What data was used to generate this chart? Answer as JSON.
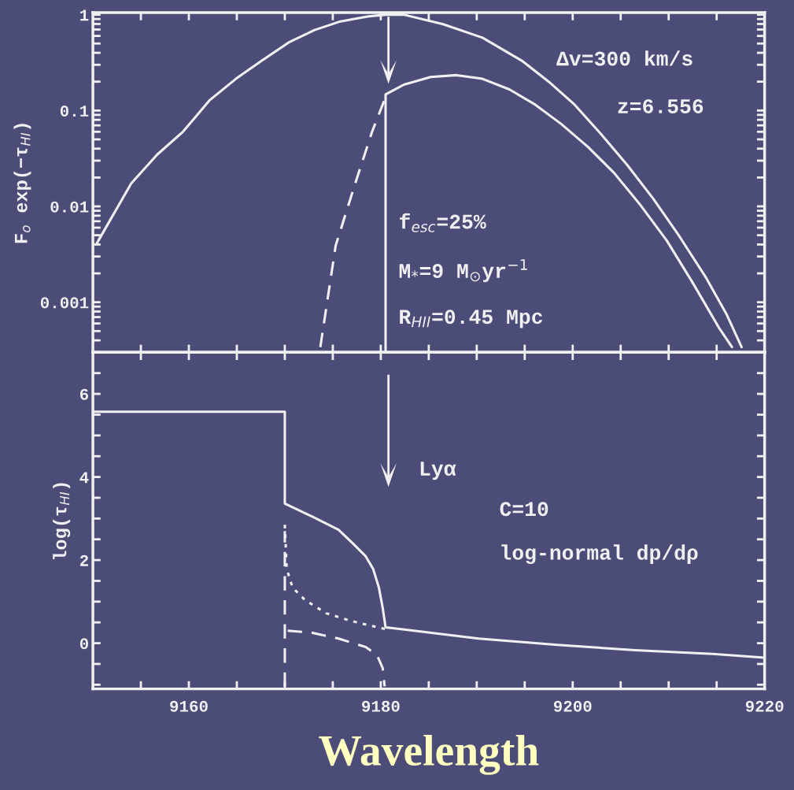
{
  "chart_data": [
    {
      "type": "line",
      "ylabel": "F$_{o}$ exp(−τ$_{HI}$)",
      "log": "y",
      "xlim": [
        9150,
        9220
      ],
      "ylim": [
        0.0003,
        1.05
      ],
      "xticks": [
        {
          "value": 9155,
          "label": null
        },
        {
          "value": 9160,
          "label": null
        },
        {
          "value": 9165,
          "label": null
        },
        {
          "value": 9170,
          "label": null
        },
        {
          "value": 9175,
          "label": null
        },
        {
          "value": 9180,
          "label": null
        },
        {
          "value": 9185,
          "label": null
        },
        {
          "value": 9190,
          "label": null
        },
        {
          "value": 9195,
          "label": null
        },
        {
          "value": 9200,
          "label": null
        },
        {
          "value": 9205,
          "label": null
        },
        {
          "value": 9210,
          "label": null
        },
        {
          "value": 9215,
          "label": null
        }
      ],
      "yticks": [
        0.001,
        0.01,
        0.1,
        {
          "value": 1,
          "label": "1"
        }
      ],
      "tick_labels": "y",
      "grid": false,
      "marker": "none",
      "series": [
        {
          "color": "#f0f0f0",
          "line_style": "solid",
          "x": [
            9150.4,
            9154.0,
            9156.7,
            9159.4,
            9162.2,
            9164.9,
            9167.6,
            9170.4,
            9173.1,
            9175.8,
            9178.6,
            9180.5,
            9182.4,
            9186.5,
            9190.6,
            9194.7,
            9197.5,
            9200.2,
            9202.9,
            9205.7,
            9208.4,
            9211.1,
            9213.9,
            9216.0,
            9217.6
          ],
          "values": [
            0.0041,
            0.0174,
            0.0347,
            0.0603,
            0.129,
            0.214,
            0.331,
            0.513,
            0.692,
            0.851,
            0.955,
            1.0,
            1.0,
            0.794,
            0.575,
            0.331,
            0.2,
            0.115,
            0.0575,
            0.0269,
            0.012,
            0.0049,
            0.0018,
            0.00076,
            0.00034
          ]
        },
        {
          "color": "#f0f0f0",
          "line_style": "solid",
          "x": [
            9180.5,
            9180.5,
            9182.4,
            9185.2,
            9187.9,
            9190.6,
            9193.4,
            9196.1,
            9198.8,
            9201.6,
            9204.3,
            9207.0,
            9209.8,
            9212.5,
            9215.2,
            9216.6
          ],
          "values": [
            0.00031,
            0.147,
            0.186,
            0.224,
            0.234,
            0.214,
            0.166,
            0.115,
            0.0724,
            0.0417,
            0.0224,
            0.0105,
            0.0044,
            0.0016,
            0.00055,
            0.00034
          ]
        },
        {
          "color": "#f0f0f0",
          "line_style": "dashed",
          "x": [
            9173.7,
            9175.3,
            9177.5,
            9179.1,
            9180.5
          ],
          "values": [
            0.00034,
            0.0039,
            0.0195,
            0.0603,
            0.138
          ]
        }
      ],
      "annotations": [
        "Δv=300 km/s",
        "z=6.556",
        "f$_{esc}$=25%",
        "M$_{*}$=9 M$_{⊙}$yr$^{−1}$",
        "R$_{HII}$=0.45 Mpc"
      ]
    },
    {
      "type": "line",
      "ylabel": "log(τ$_{HI}$)",
      "xlabel": "Wavelength",
      "xlim": [
        9150,
        9220
      ],
      "ylim": [
        -1.1,
        7
      ],
      "xticks": [
        {
          "value": 9155,
          "label": null
        },
        9160,
        {
          "value": 9165,
          "label": null
        },
        {
          "value": 9170,
          "label": null
        },
        {
          "value": 9175,
          "label": null
        },
        9180,
        {
          "value": 9185,
          "label": null
        },
        {
          "value": 9190,
          "label": null
        },
        {
          "value": 9195,
          "label": null
        },
        9200,
        {
          "value": 9205,
          "label": null
        },
        {
          "value": 9210,
          "label": null
        },
        {
          "value": 9215,
          "label": null
        },
        9220
      ],
      "yticks": [
        {
          "value": -1,
          "label": null
        },
        {
          "value": -0.5,
          "label": null
        },
        0,
        {
          "value": 0.5,
          "label": null
        },
        {
          "value": 1,
          "label": null
        },
        {
          "value": 1.5,
          "label": null
        },
        2,
        {
          "value": 2.5,
          "label": null
        },
        {
          "value": 3,
          "label": null
        },
        {
          "value": 3.5,
          "label": null
        },
        4,
        {
          "value": 4.5,
          "label": null
        },
        {
          "value": 5,
          "label": null
        },
        {
          "value": 5.5,
          "label": null
        },
        6,
        {
          "value": 6.5,
          "label": null
        }
      ],
      "grid": false,
      "marker": "none",
      "series": [
        {
          "color": "#f0f0f0",
          "line_style": "solid",
          "x": [
            9150,
            9170,
            9170,
            9172.9,
            9175.6,
            9177.0,
            9178.4,
            9179.2,
            9179.8,
            9180.2,
            9180.5,
            9182.1,
            9190.2,
            9198.4,
            9206.5,
            9214.6,
            9220
          ],
          "values": [
            5.57,
            5.57,
            3.36,
            3.04,
            2.73,
            2.42,
            2.1,
            1.79,
            1.34,
            0.85,
            0.38,
            0.34,
            0.11,
            -0.04,
            -0.17,
            -0.26,
            -0.35
          ]
        },
        {
          "color": "#f0f0f0",
          "line_style": "dotted",
          "x": [
            9170,
            9170.2,
            9170.8,
            9172.1,
            9174.3,
            9177.0,
            9179.7,
            9180.5
          ],
          "values": [
            2.85,
            1.79,
            1.34,
            1.04,
            0.72,
            0.53,
            0.38,
            0.34
          ]
        },
        {
          "color": "#f0f0f0",
          "line_style": "dashed",
          "x": [
            9170,
            9170
          ],
          "values": [
            -1.05,
            2.7
          ]
        },
        {
          "color": "#f0f0f0",
          "line_style": "dashed",
          "x": [
            9170.3,
            9172.9,
            9175.6,
            9178.4,
            9179.6,
            9180.2,
            9180.4
          ],
          "values": [
            0.3,
            0.25,
            0.11,
            -0.09,
            -0.28,
            -0.6,
            -1.04
          ]
        }
      ],
      "annotations": [
        "Lyα",
        "C=10",
        "log-normal dp/dρ"
      ]
    }
  ]
}
